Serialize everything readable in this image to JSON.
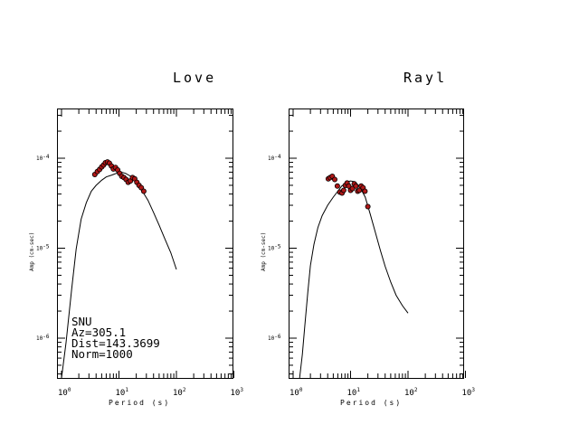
{
  "chart_data": [
    {
      "type": "line",
      "title": "Love",
      "xlabel": "Period (s)",
      "ylabel": "Amp (cm-sec)",
      "x_scale": "log",
      "y_scale": "log",
      "xlim": [
        1,
        1000
      ],
      "ylim": [
        3.3e-07,
        0.00033
      ],
      "x_ticks": [
        {
          "base": "10",
          "exp": "0",
          "value": 1
        },
        {
          "base": "10",
          "exp": "1",
          "value": 10
        },
        {
          "base": "10",
          "exp": "2",
          "value": 100
        },
        {
          "base": "10",
          "exp": "3",
          "value": 1000
        }
      ],
      "y_ticks": [
        {
          "base": "10",
          "exp": "-6",
          "value": 1e-06
        },
        {
          "base": "10",
          "exp": "-5",
          "value": 1e-05
        },
        {
          "base": "10",
          "exp": "-4",
          "value": 0.0001
        }
      ],
      "series": [
        {
          "kind": "line",
          "x": [
            1.0,
            1.2,
            1.5,
            1.8,
            2.2,
            2.7,
            3.3,
            4.0,
            5.0,
            6.0,
            7.5,
            9.0,
            11.0,
            13.0,
            16.0,
            20.0,
            25.0,
            32.0,
            40.0,
            50.0,
            62.0,
            80.0,
            100.0
          ],
          "y": [
            2e-07,
            8.9e-07,
            3.5e-06,
            9.8e-06,
            2.1e-05,
            3.2e-05,
            4.3e-05,
            5e-05,
            5.7e-05,
            6.2e-05,
            6.5e-05,
            6.8e-05,
            7e-05,
            6.8e-05,
            6.3e-05,
            5.5e-05,
            4.4e-05,
            3.4e-05,
            2.5e-05,
            1.8e-05,
            1.3e-05,
            8.9e-06,
            5.8e-06
          ]
        },
        {
          "kind": "points",
          "x": [
            3.8,
            4.2,
            4.6,
            5.0,
            5.4,
            5.8,
            6.3,
            6.8,
            7.4,
            8.0,
            8.7,
            9.5,
            10.3,
            11.2,
            12.2,
            13.3,
            14.5,
            15.8,
            17.2,
            18.8,
            20.5,
            22.4,
            24.5,
            27.0
          ],
          "y": [
            6.6e-05,
            7.1e-05,
            7.5e-05,
            8e-05,
            8.4e-05,
            8.9e-05,
            9.1e-05,
            8.8e-05,
            8.2e-05,
            7.6e-05,
            7.9e-05,
            7.4e-05,
            6.8e-05,
            6.3e-05,
            6.1e-05,
            5.8e-05,
            5.4e-05,
            5.6e-05,
            6.1e-05,
            5.9e-05,
            5.4e-05,
            5e-05,
            4.7e-05,
            4.3e-05
          ]
        }
      ],
      "annotations": [
        "SNU",
        "Az=305.1",
        "Dist=143.3699",
        "Norm=1000"
      ]
    },
    {
      "type": "line",
      "title": "Rayl",
      "xlabel": "Period (s)",
      "ylabel": "Amp (cm-sec)",
      "x_scale": "log",
      "y_scale": "log",
      "xlim": [
        1,
        1000
      ],
      "ylim": [
        3.3e-07,
        0.00033
      ],
      "x_ticks": [
        {
          "base": "10",
          "exp": "0",
          "value": 1
        },
        {
          "base": "10",
          "exp": "1",
          "value": 10
        },
        {
          "base": "10",
          "exp": "2",
          "value": 100
        },
        {
          "base": "10",
          "exp": "3",
          "value": 1000
        }
      ],
      "y_ticks": [
        {
          "base": "10",
          "exp": "-6",
          "value": 1e-06
        },
        {
          "base": "10",
          "exp": "-5",
          "value": 1e-05
        },
        {
          "base": "10",
          "exp": "-4",
          "value": 0.0001
        }
      ],
      "series": [
        {
          "kind": "line",
          "x": [
            1.3,
            1.45,
            1.6,
            1.8,
            2.0,
            2.3,
            2.7,
            3.2,
            4.0,
            5.0,
            6.0,
            7.0,
            8.0,
            9.0,
            10.0,
            11.5,
            13.0,
            15.0,
            18.0,
            22.0,
            27.0,
            33.0,
            40.0,
            50.0,
            62.0,
            80.0,
            100.0
          ],
          "y": [
            3.3e-07,
            6.6e-07,
            1.4e-06,
            3.2e-06,
            6.4e-06,
            1.1e-05,
            1.7e-05,
            2.3e-05,
            3e-05,
            3.7e-05,
            4.3e-05,
            4.9e-05,
            5.2e-05,
            5.5e-05,
            5.6e-05,
            5.5e-05,
            5.2e-05,
            4.6e-05,
            3.7e-05,
            2.4e-05,
            1.5e-05,
            9.5e-06,
            6.3e-06,
            4.2e-06,
            3e-06,
            2.3e-06,
            1.9e-06
          ]
        },
        {
          "kind": "points",
          "x": [
            4.1,
            4.4,
            4.8,
            5.3,
            5.9,
            6.5,
            7.1,
            7.6,
            8.1,
            8.7,
            9.3,
            10.0,
            10.8,
            11.6,
            12.4,
            13.3,
            14.2,
            15.3,
            16.5,
            17.8,
            20.0
          ],
          "y": [
            5.9e-05,
            6.1e-05,
            6.3e-05,
            5.8e-05,
            4.9e-05,
            4.2e-05,
            4.1e-05,
            4.4e-05,
            5e-05,
            5.3e-05,
            4.9e-05,
            4.4e-05,
            4.6e-05,
            5.2e-05,
            4.9e-05,
            4.3e-05,
            4.4e-05,
            4.9e-05,
            4.7e-05,
            4.3e-05,
            2.9e-05
          ]
        }
      ],
      "annotations": []
    }
  ],
  "colors": {
    "point_fill": "#b01818",
    "point_stroke": "#000000",
    "line": "#000000",
    "background": "#ffffff"
  }
}
